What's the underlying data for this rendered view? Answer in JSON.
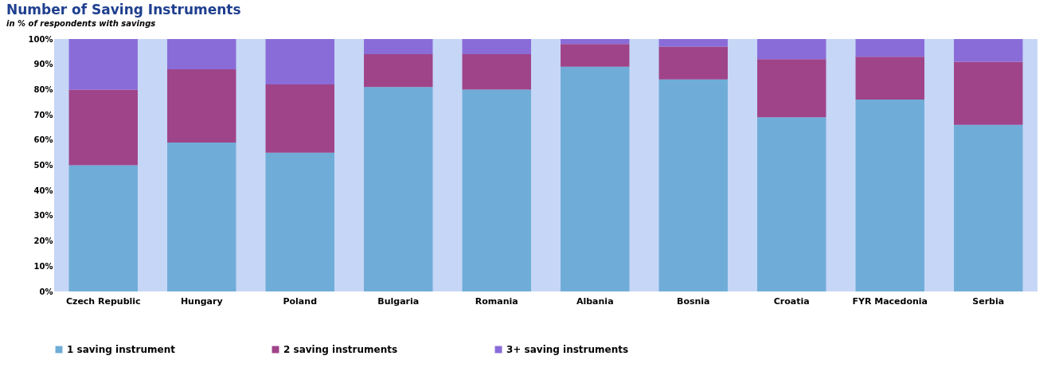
{
  "chart_data": {
    "type": "bar",
    "stacked": true,
    "title": "Number of Saving Instruments",
    "subtitle": "in % of respondents with savings",
    "categories": [
      "Czech Republic",
      "Hungary",
      "Poland",
      "Bulgaria",
      "Romania",
      "Albania",
      "Bosnia",
      "Croatia",
      "FYR Macedonia",
      "Serbia"
    ],
    "series": [
      {
        "name": "1 saving instrument",
        "color": "#6fadd8",
        "values": [
          50,
          59,
          55,
          81,
          80,
          89,
          84,
          69,
          76,
          66
        ]
      },
      {
        "name": "2 saving instruments",
        "color": "#a0448a",
        "values": [
          30,
          29,
          27,
          13,
          14,
          9,
          13,
          23,
          17,
          25
        ]
      },
      {
        "name": "3+ saving instruments",
        "color": "#8a6cd8",
        "values": [
          20,
          12,
          18,
          6,
          6,
          2,
          3,
          8,
          7,
          9
        ]
      }
    ],
    "ylim": [
      0,
      100
    ],
    "yticks": [
      {
        "value": 0,
        "label": "0%"
      },
      {
        "value": 10,
        "label": "10%"
      },
      {
        "value": 20,
        "label": "20%"
      },
      {
        "value": 30,
        "label": "30%"
      },
      {
        "value": 40,
        "label": "40%"
      },
      {
        "value": 50,
        "label": "50%"
      },
      {
        "value": 60,
        "label": "60%"
      },
      {
        "value": 70,
        "label": "70%"
      },
      {
        "value": 80,
        "label": "80%"
      },
      {
        "value": 90,
        "label": "90%"
      },
      {
        "value": 100,
        "label": "100%"
      }
    ],
    "bands": [
      {
        "axis": "y",
        "from": 0,
        "to": 100,
        "color": "#c6d6f6"
      }
    ],
    "legend": "bottom"
  }
}
